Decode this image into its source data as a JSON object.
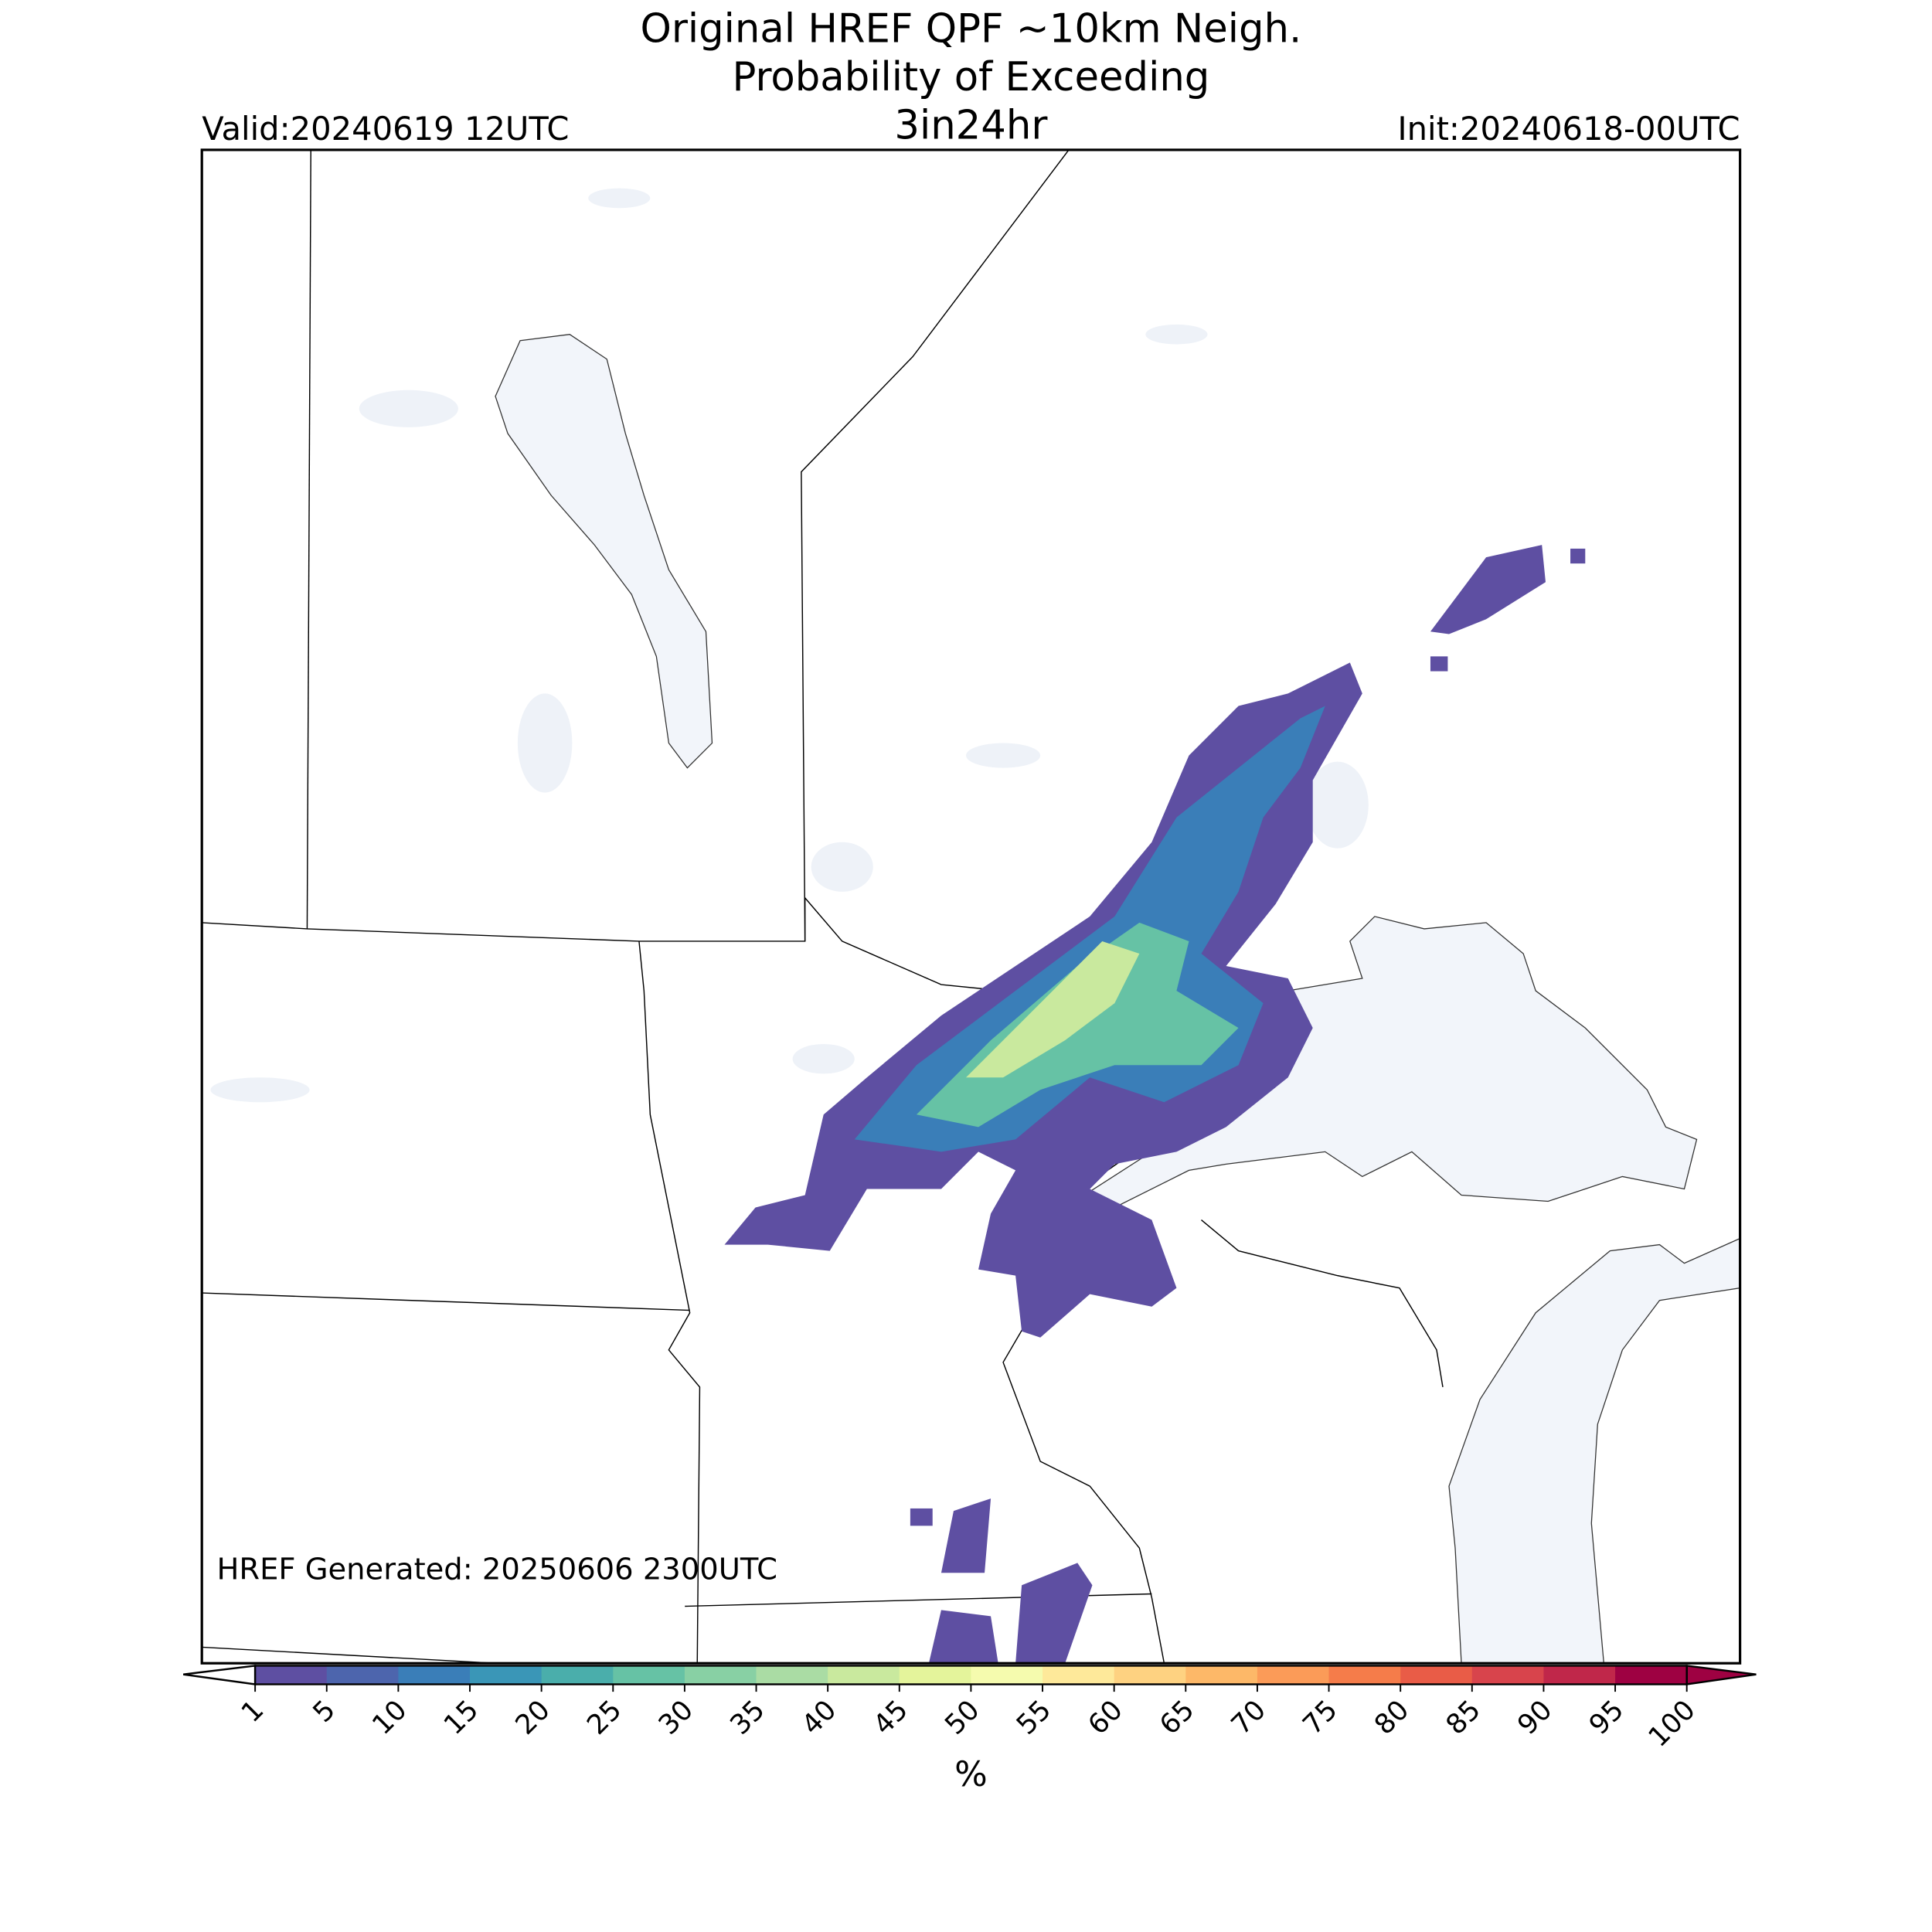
{
  "header": {
    "title": [
      "Original HREF QPF ~10km Neigh.",
      "Probability of Exceeding",
      "3in24hr"
    ],
    "valid": "Valid:20240619 12UTC",
    "init": "Init:20240618-00UTC"
  },
  "map": {
    "footnote": "HREF Generated: 20250606 2300UTC"
  },
  "colorbar": {
    "ticks": [
      1,
      5,
      10,
      15,
      20,
      25,
      30,
      35,
      40,
      45,
      50,
      55,
      60,
      65,
      70,
      75,
      80,
      85,
      90,
      95,
      100
    ],
    "colors": [
      "#5e4fa2",
      "#4d65ad",
      "#3a7eb8",
      "#3a96b7",
      "#4aaeab",
      "#66c2a5",
      "#88d0a4",
      "#aadca4",
      "#c9e99e",
      "#e4f49b",
      "#f5fbae",
      "#fee99a",
      "#fed281",
      "#fdb868",
      "#fb9b58",
      "#f57c4a",
      "#e95c47",
      "#d8444c",
      "#c0274a",
      "#9e0142"
    ],
    "label": "%"
  }
}
